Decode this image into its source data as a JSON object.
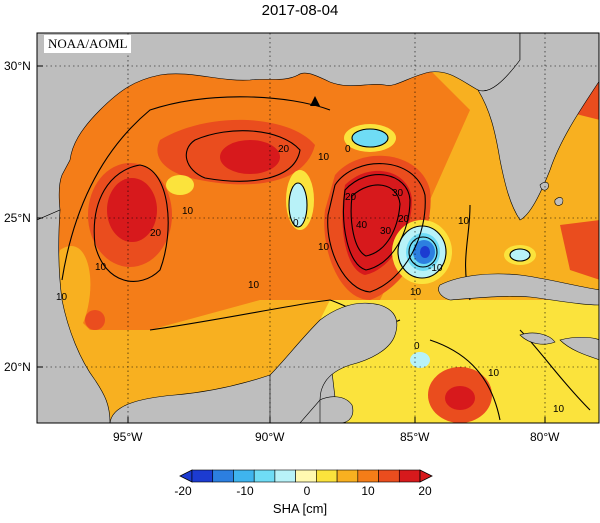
{
  "title": "2017-08-04",
  "credit": "NOAA/AOML",
  "lat_labels": [
    "30°N",
    "25°N",
    "20°N"
  ],
  "lon_labels": [
    "95°W",
    "90°W",
    "85°W",
    "80°W"
  ],
  "contour_labels": [
    "10",
    "20",
    "20",
    "10",
    "10",
    "10",
    "10",
    "30",
    "40",
    "20",
    "20",
    "30",
    "10",
    "0",
    "0",
    "-10",
    "10",
    "10",
    "10",
    "0",
    "10"
  ],
  "colorbar": {
    "label": "SHA [cm]",
    "ticks": [
      "-20",
      "-10",
      "0",
      "10",
      "20"
    ],
    "colors": [
      "#1c3bd1",
      "#2c7fe0",
      "#3fb4ee",
      "#6fdcf5",
      "#b8f2f8",
      "#fff9b0",
      "#fbe33c",
      "#f8b020",
      "#f47d18",
      "#ea4d1e",
      "#d7191c"
    ]
  },
  "marker": "triangle"
}
